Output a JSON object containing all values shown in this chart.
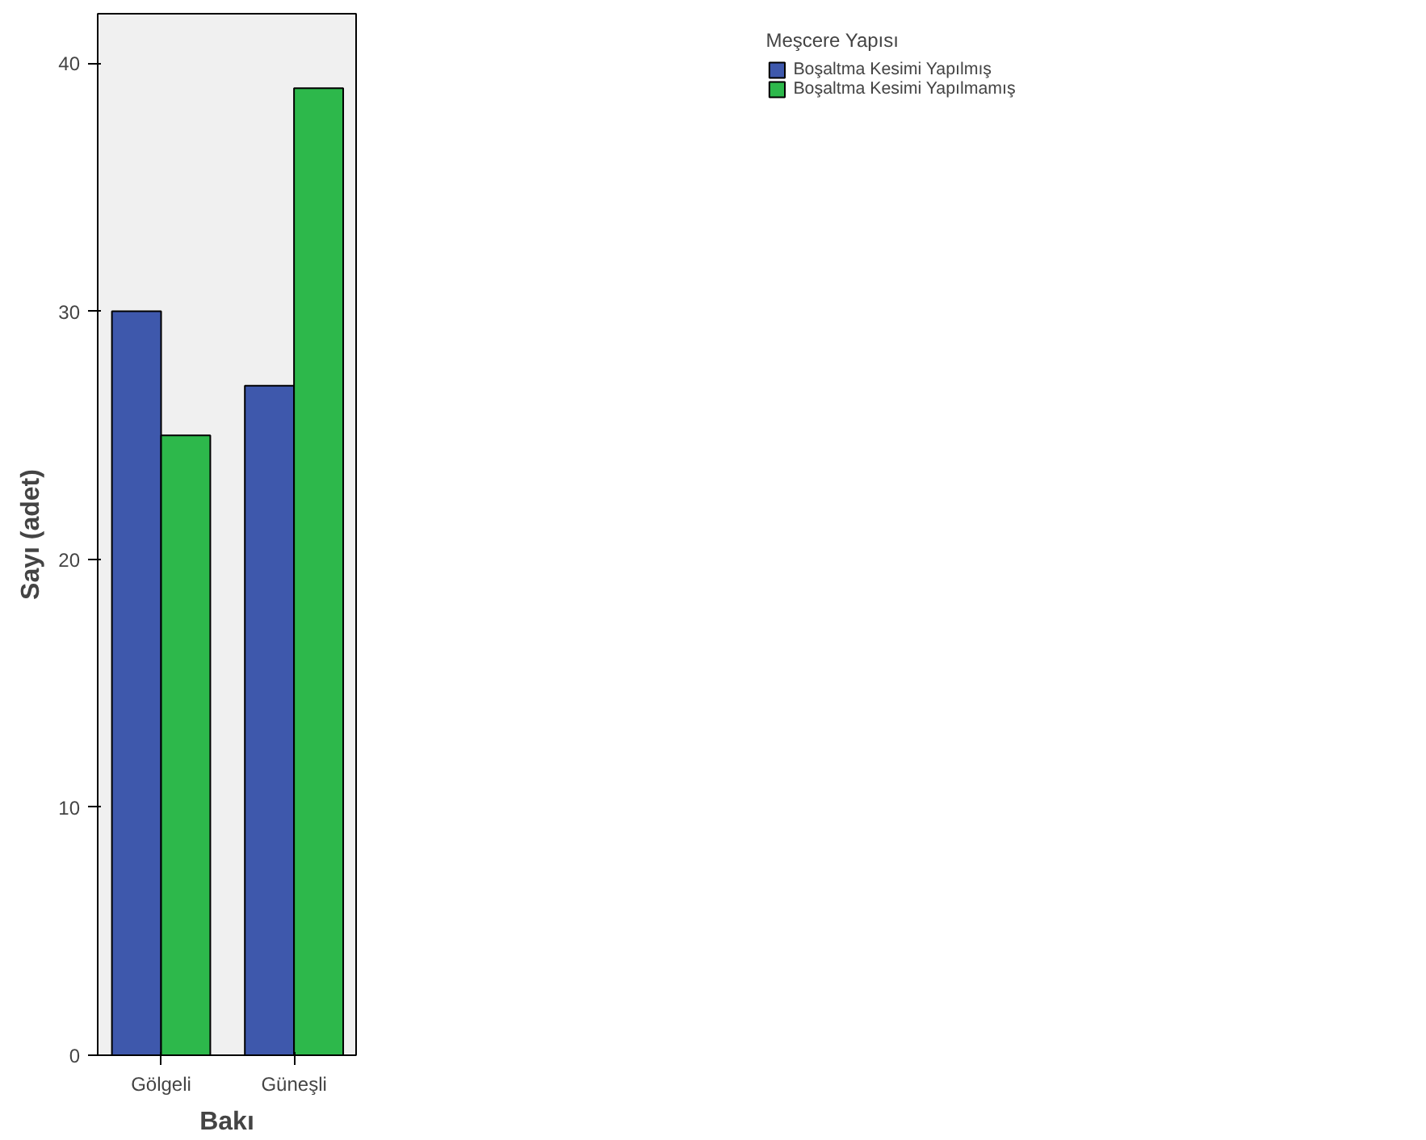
{
  "chart_data": {
    "type": "bar",
    "xlabel": "Bakı",
    "ylabel": "Sayı (adet)",
    "legend_title": "Meşcere Yapısı",
    "categories": [
      "Gölgeli",
      "Güneşli"
    ],
    "series": [
      {
        "name": "Boşaltma Kesimi Yapılmış",
        "color": "#3e58ac",
        "values": [
          30,
          27
        ]
      },
      {
        "name": "Boşaltma Kesimi Yapılmamış",
        "color": "#2db84b",
        "values": [
          25,
          39
        ]
      }
    ],
    "ylim": [
      0,
      42
    ],
    "yticks": [
      0,
      10,
      20,
      30,
      40
    ],
    "grid": false,
    "legend": "top right"
  }
}
